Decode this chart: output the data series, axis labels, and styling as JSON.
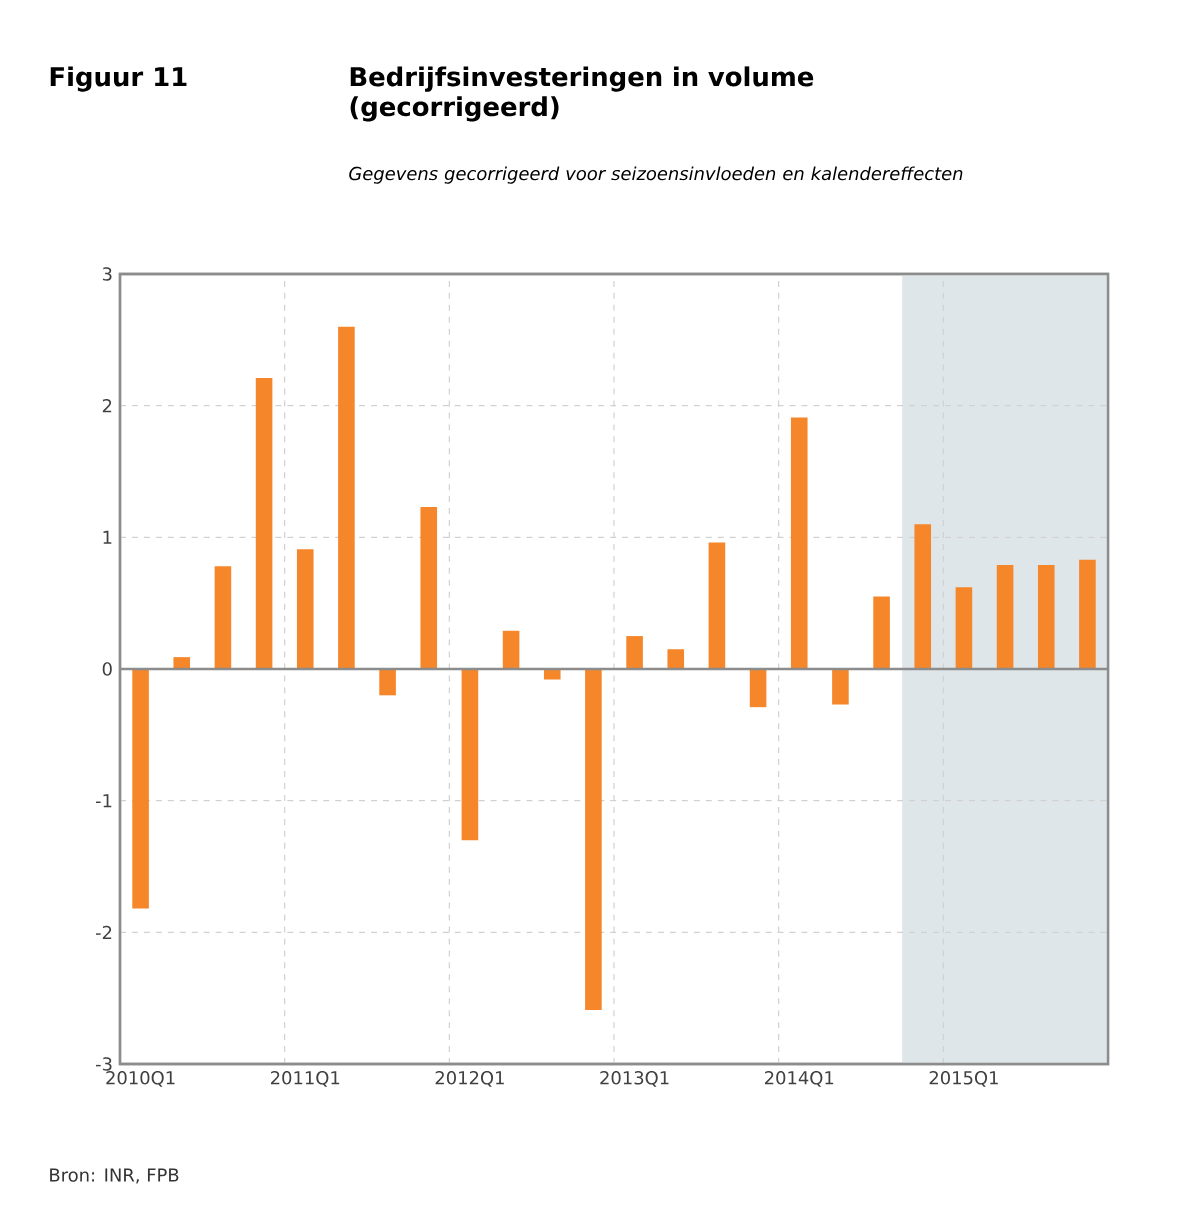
{
  "chart_data": {
    "type": "bar",
    "title": "Bedrijfsinvesteringen in volume (gecorrigeerd)",
    "subtitle": "Gegevens gecorrigeerd voor seizoensinvloeden en kalendereffecten",
    "annotations": [
      "Figuur 11",
      "Bron: INR, FPB"
    ],
    "categories": [
      "2010Q1",
      null,
      null,
      null,
      "2011Q1",
      null,
      null,
      null,
      "2012Q1",
      null,
      null,
      null,
      "2013Q1",
      null,
      null,
      null,
      "2014Q1",
      null,
      null,
      null,
      "2015Q1",
      null,
      null,
      null
    ],
    "values": [
      -1.82,
      0.09,
      0.78,
      2.21,
      0.91,
      2.6,
      -0.2,
      1.23,
      -1.3,
      0.29,
      -0.08,
      -2.59,
      0.25,
      0.15,
      0.96,
      -0.29,
      1.91,
      -0.27,
      0.55,
      1.1,
      0.62,
      0.79,
      0.79,
      0.83
    ],
    "color": "#f5862a",
    "ylim": [
      -3,
      3
    ],
    "yticks": [
      -3,
      -2,
      -1,
      0,
      1,
      2,
      3
    ],
    "grid": true
  }
}
